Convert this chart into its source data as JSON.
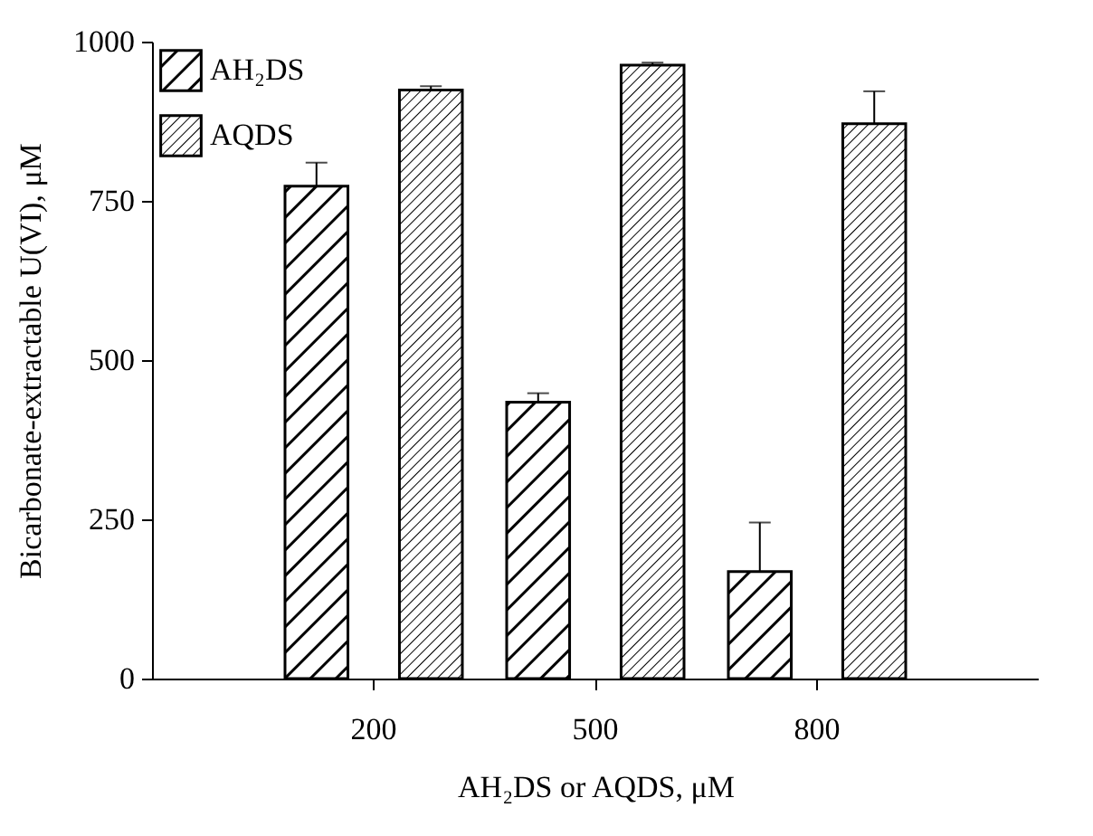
{
  "chart_data": {
    "type": "bar",
    "xlabel": "AH₂DS or AQDS, μM",
    "ylabel": "Bicarbonate-extractable U(VI), μM",
    "categories": [
      "200",
      "500",
      "800"
    ],
    "series": [
      {
        "name": "AH₂DS",
        "color": "#000000",
        "values": [
          773,
          434,
          168
        ],
        "errors": [
          [
            773,
            810
          ],
          [
            434,
            448
          ],
          [
            168,
            245
          ]
        ]
      },
      {
        "name": "AQDS",
        "color": "#000000",
        "values": [
          924,
          963,
          871
        ],
        "errors": [
          [
            924,
            930
          ],
          [
            963,
            967
          ],
          [
            871,
            922
          ]
        ]
      }
    ],
    "ylim": [
      0,
      1000
    ],
    "yticks": [
      0,
      250,
      500,
      750,
      1000
    ],
    "grid": false,
    "legend": "top left"
  }
}
